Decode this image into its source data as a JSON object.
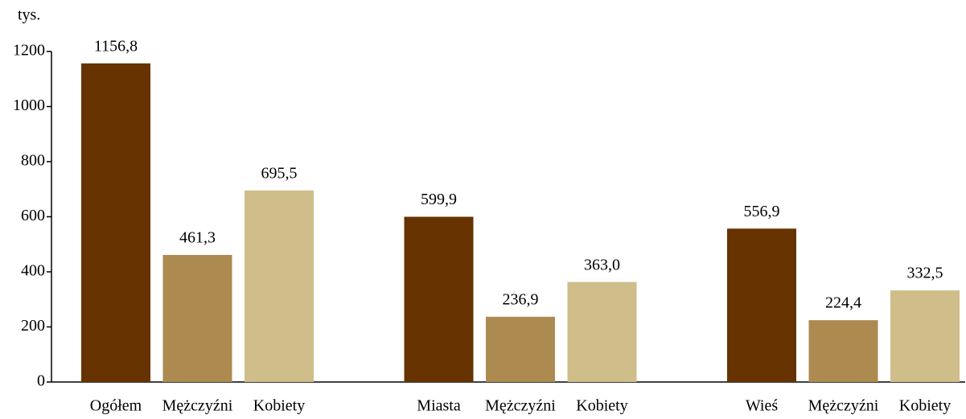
{
  "chart_data": {
    "type": "bar",
    "y_label": "tys.",
    "categories": [
      "Ogółem",
      "Mężczyźni",
      "Kobiety",
      "Miasta",
      "Mężczyźni",
      "Kobiety",
      "Wieś",
      "Mężczyźni",
      "Kobiety"
    ],
    "values": [
      1156.8,
      461.3,
      695.5,
      599.9,
      236.9,
      363.0,
      556.9,
      224.4,
      332.5
    ],
    "value_labels": [
      "1156,8",
      "461,3",
      "695,5",
      "599,9",
      "236,9",
      "363,0",
      "556,9",
      "224,4",
      "332,5"
    ],
    "colors": [
      "#663300",
      "#ad8a50",
      "#cfbd8a",
      "#663300",
      "#ad8a50",
      "#cfbd8a",
      "#663300",
      "#ad8a50",
      "#cfbd8a"
    ],
    "ylim": [
      0,
      1200
    ],
    "yticks": [
      0,
      200,
      400,
      600,
      800,
      1000,
      1200
    ],
    "grid": false
  }
}
